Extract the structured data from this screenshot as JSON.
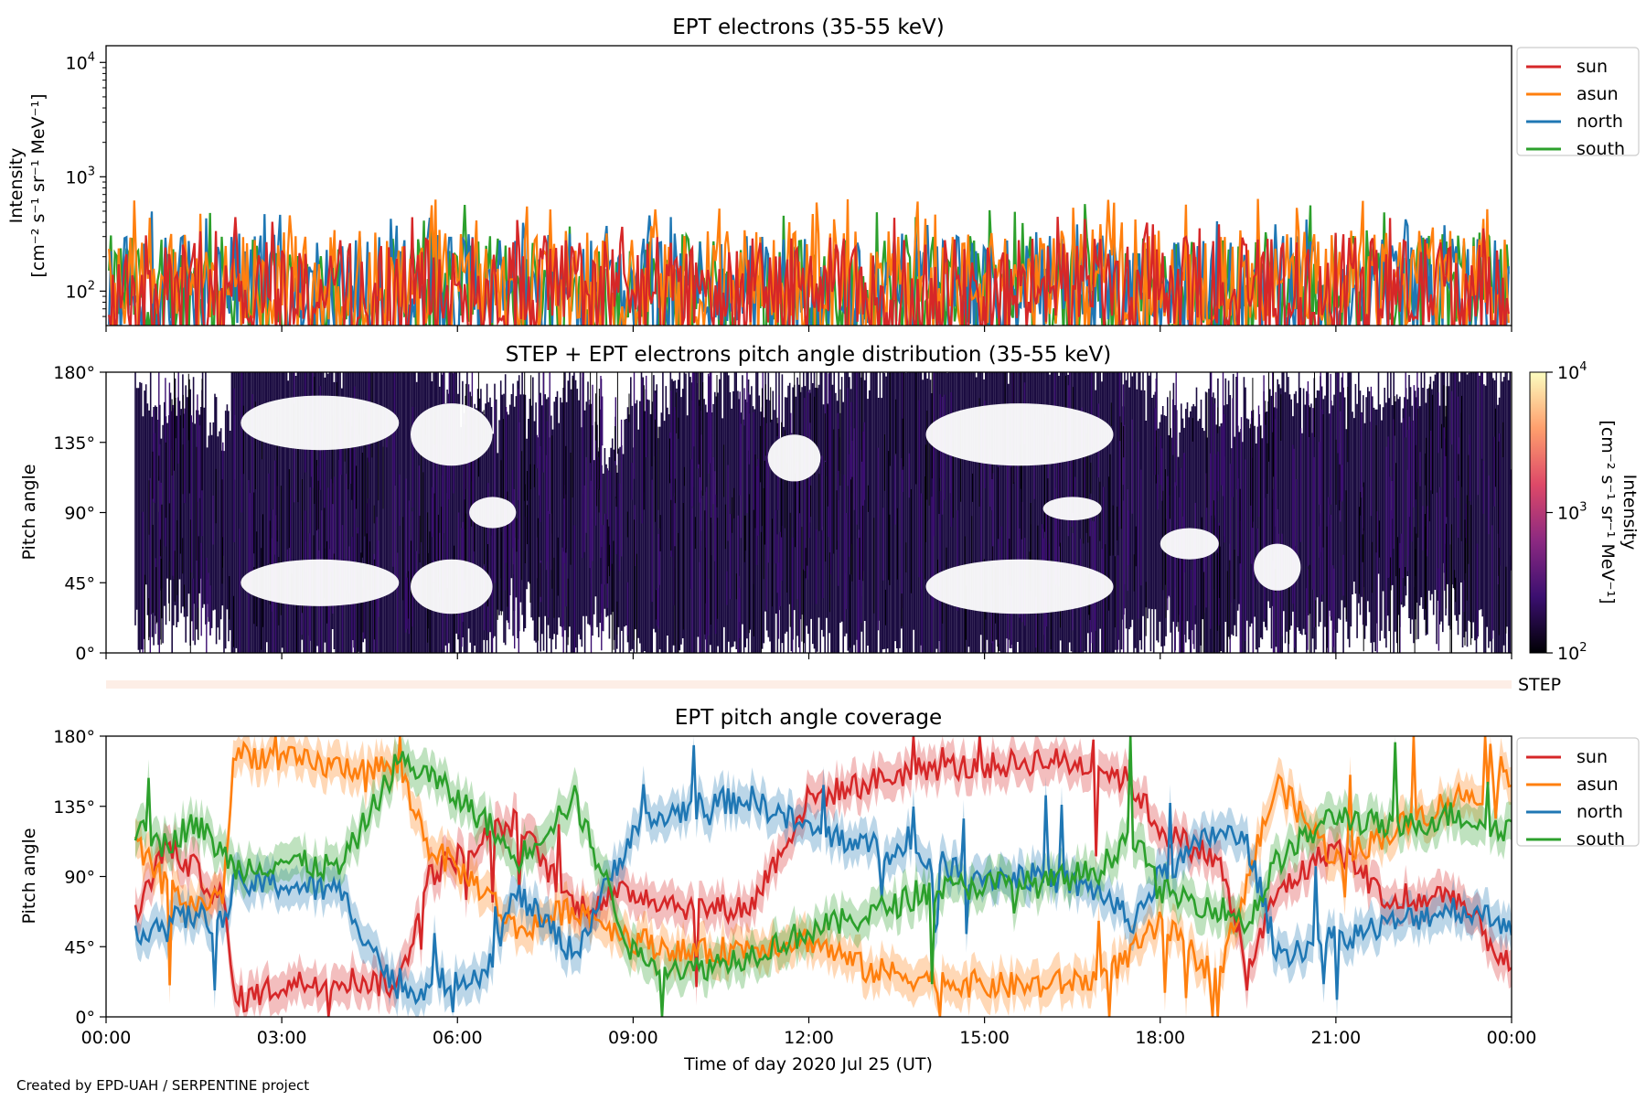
{
  "footer": "Created by EPD-UAH / SERPENTINE project",
  "colors": {
    "sun": "#d62728",
    "asun": "#ff7f0e",
    "north": "#1f77b4",
    "south": "#2ca02c",
    "step_band": "#fdeee6"
  },
  "chart_data": [
    {
      "type": "line",
      "title": "EPT electrons (35-55 keV)",
      "ylabel_line1": "Intensity",
      "ylabel_line2": "[cm⁻² s⁻¹ sr⁻¹ MeV⁻¹]",
      "yscale": "log",
      "ylim": [
        50,
        14000
      ],
      "yticks": [
        {
          "value": 100,
          "base": "10",
          "exp": "2"
        },
        {
          "value": 1000,
          "base": "10",
          "exp": "3"
        },
        {
          "value": 10000,
          "base": "10",
          "exp": "4"
        }
      ],
      "xlim_hours": [
        0,
        24
      ],
      "legend_position": "outside-right-top",
      "series": [
        {
          "name": "sun",
          "color": "#d62728",
          "typical": 130,
          "peak": 450
        },
        {
          "name": "asun",
          "color": "#ff7f0e",
          "typical": 150,
          "peak": 650
        },
        {
          "name": "north",
          "color": "#1f77b4",
          "typical": 140,
          "peak": 500
        },
        {
          "name": "south",
          "color": "#2ca02c",
          "typical": 135,
          "peak": 600
        }
      ]
    },
    {
      "type": "heatmap",
      "title": "STEP + EPT electrons pitch angle distribution (35-55 keV)",
      "ylabel": "Pitch angle",
      "ylim": [
        0,
        180
      ],
      "yticks": [
        "0°",
        "45°",
        "90°",
        "135°",
        "180°"
      ],
      "colorbar": {
        "label_line1": "Intensity",
        "label_line2": "[cm⁻² s⁻¹ sr⁻¹ MeV⁻¹]",
        "scale": "log",
        "range": [
          100,
          10000
        ],
        "ticks": [
          {
            "base": "10",
            "exp": "2"
          },
          {
            "base": "10",
            "exp": "3"
          },
          {
            "base": "10",
            "exp": "4"
          }
        ],
        "cmap": [
          "#000004",
          "#3b0f70",
          "#8c2981",
          "#de4968",
          "#fe9f6d",
          "#fcfdbf"
        ]
      },
      "step_label": "STEP"
    },
    {
      "type": "line",
      "title": "EPT pitch angle coverage",
      "ylabel": "Pitch angle",
      "ylim": [
        0,
        180
      ],
      "yticks": [
        "0°",
        "45°",
        "90°",
        "135°",
        "180°"
      ],
      "xlabel": "Time of day 2020 Jul 25 (UT)",
      "xticks": [
        "00:00",
        "03:00",
        "06:00",
        "09:00",
        "12:00",
        "15:00",
        "18:00",
        "21:00",
        "00:00"
      ],
      "legend_position": "outside-right-top",
      "series": [
        {
          "name": "sun",
          "color": "#d62728",
          "x": [
            0.5,
            1.0,
            1.5,
            2.0,
            2.2,
            3.0,
            4.0,
            5.0,
            5.5,
            6.5,
            7.0,
            8.0,
            9.0,
            10.0,
            11.0,
            12.0,
            13.0,
            14.0,
            15.0,
            16.0,
            17.0,
            17.5,
            18.0,
            19.0,
            19.5,
            20.0,
            21.0,
            22.0,
            23.0,
            24.0
          ],
          "y": [
            65,
            110,
            95,
            75,
            10,
            20,
            25,
            20,
            90,
            115,
            125,
            70,
            80,
            70,
            70,
            140,
            150,
            160,
            160,
            165,
            160,
            150,
            120,
            100,
            30,
            80,
            110,
            70,
            80,
            30
          ]
        },
        {
          "name": "asun",
          "color": "#ff7f0e",
          "x": [
            0.5,
            1.0,
            1.5,
            2.0,
            2.2,
            3.0,
            4.0,
            5.0,
            5.5,
            6.5,
            7.0,
            8.0,
            9.0,
            10.0,
            11.0,
            12.0,
            13.0,
            14.0,
            15.0,
            16.0,
            17.0,
            17.5,
            18.0,
            19.0,
            19.5,
            20.0,
            21.0,
            22.0,
            23.0,
            24.0
          ],
          "y": [
            110,
            85,
            70,
            80,
            170,
            165,
            160,
            160,
            110,
            80,
            55,
            70,
            50,
            40,
            45,
            50,
            30,
            25,
            20,
            20,
            25,
            40,
            60,
            25,
            90,
            150,
            100,
            120,
            140,
            150
          ]
        },
        {
          "name": "north",
          "color": "#1f77b4",
          "x": [
            0.5,
            1.0,
            1.5,
            2.0,
            2.2,
            3.0,
            4.0,
            5.0,
            5.5,
            6.5,
            7.0,
            8.0,
            9.0,
            10.0,
            11.0,
            12.0,
            13.0,
            14.0,
            15.0,
            16.0,
            17.0,
            17.5,
            18.0,
            19.0,
            19.5,
            20.0,
            21.0,
            22.0,
            23.0,
            24.0
          ],
          "y": [
            55,
            60,
            65,
            60,
            85,
            85,
            80,
            15,
            20,
            30,
            80,
            40,
            120,
            135,
            140,
            120,
            110,
            100,
            90,
            90,
            80,
            60,
            90,
            120,
            110,
            40,
            50,
            60,
            70,
            60
          ]
        },
        {
          "name": "south",
          "color": "#2ca02c",
          "x": [
            0.5,
            1.0,
            1.5,
            2.0,
            2.2,
            3.0,
            4.0,
            5.0,
            5.5,
            6.5,
            7.0,
            8.0,
            9.0,
            10.0,
            11.0,
            12.0,
            13.0,
            14.0,
            15.0,
            16.0,
            17.0,
            17.5,
            18.0,
            19.0,
            19.5,
            20.0,
            21.0,
            22.0,
            23.0,
            24.0
          ],
          "y": [
            120,
            110,
            125,
            105,
            95,
            100,
            95,
            165,
            155,
            125,
            100,
            140,
            40,
            30,
            40,
            55,
            65,
            80,
            85,
            85,
            95,
            120,
            80,
            70,
            60,
            100,
            130,
            120,
            130,
            120
          ]
        }
      ]
    }
  ]
}
